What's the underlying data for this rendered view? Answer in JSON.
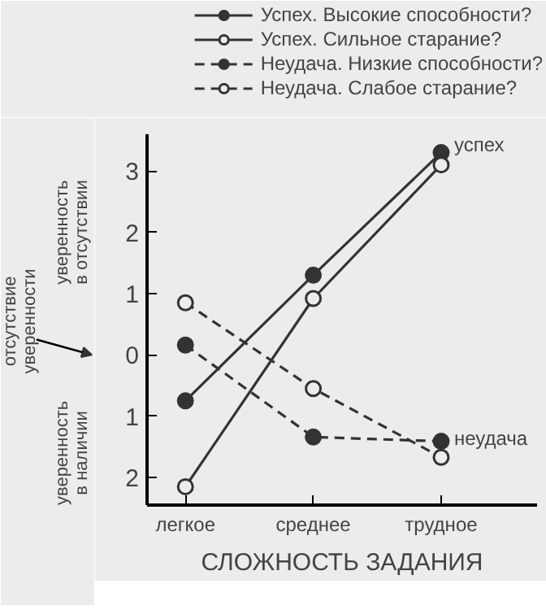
{
  "chart_data": {
    "type": "line",
    "xlabel": "СЛОЖНОСТЬ ЗАДАНИЯ",
    "categories": [
      "легкое",
      "среднее",
      "трудное"
    ],
    "ylim": [
      -2.45,
      3.6
    ],
    "yticks": [
      {
        "value": -2,
        "label": "2"
      },
      {
        "value": -1,
        "label": "1"
      },
      0,
      1,
      2,
      3
    ],
    "series": [
      {
        "name": "Успех. Высокие способности?",
        "color": "#333333",
        "values": [
          -0.75,
          1.3,
          3.3
        ],
        "line_style": "solid",
        "marker": "circle"
      },
      {
        "name": "Успех. Сильное старание?",
        "color": "#333333",
        "values": [
          -2.15,
          0.92,
          3.1
        ],
        "line_style": "solid",
        "marker": "circle_open"
      },
      {
        "name": "Неудача. Низкие способности?",
        "color": "#333333",
        "values": [
          0.16,
          -1.34,
          -1.41
        ],
        "line_style": "dashed",
        "marker": "circle"
      },
      {
        "name": "Неудача. Слабое старание?",
        "color": "#333333",
        "values": [
          0.85,
          -0.55,
          -1.67
        ],
        "line_style": "dashed",
        "marker": "circle_open"
      }
    ],
    "annotations": [
      {
        "text": "успех",
        "x": "трудное",
        "y": 3.3
      },
      {
        "text": "неудача",
        "x": "трудное",
        "y": -1.5
      },
      "уверенность в отсутствии",
      "уверенность в наличии",
      "отсутствие уверенности"
    ],
    "legend": "top right",
    "grid": false
  }
}
